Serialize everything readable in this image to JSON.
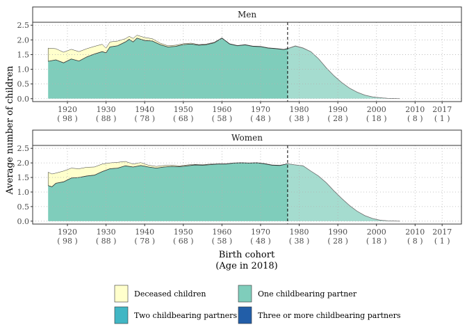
{
  "chart_data": {
    "type": "area",
    "stacked": true,
    "ylabel": "Average number of children",
    "xlabel_line1": "Birth cohort",
    "xlabel_line2": "(Age in 2018)",
    "xlim": [
      1911,
      2022
    ],
    "ylim": [
      -0.1,
      2.6
    ],
    "yticks": [
      0.0,
      0.5,
      1.0,
      1.5,
      2.0,
      2.5
    ],
    "ytick_labels": [
      "0.0",
      "0.5",
      "1.0",
      "1.5",
      "2.0",
      "2.5"
    ],
    "xticks": [
      {
        "year": 1920,
        "label": "1920",
        "age": "( 98 )"
      },
      {
        "year": 1930,
        "label": "1930",
        "age": "( 88 )"
      },
      {
        "year": 1940,
        "label": "1940",
        "age": "( 78 )"
      },
      {
        "year": 1950,
        "label": "1950",
        "age": "( 68 )"
      },
      {
        "year": 1960,
        "label": "1960",
        "age": "( 58 )"
      },
      {
        "year": 1970,
        "label": "1970",
        "age": "( 48 )"
      },
      {
        "year": 1980,
        "label": "1980",
        "age": "( 38 )"
      },
      {
        "year": 1990,
        "label": "1990",
        "age": "( 28 )"
      },
      {
        "year": 2000,
        "label": "2000",
        "age": "( 18 )"
      },
      {
        "year": 2010,
        "label": "2010",
        "age": "( 8 )"
      },
      {
        "year": 2017,
        "label": "2017",
        "age": "( 1 )"
      }
    ],
    "cutoff_year": 1977,
    "grid": true,
    "colors": {
      "deceased": "#ffffcc",
      "one": "#7fcdbb",
      "two": "#41b6c4",
      "three": "#225ea8",
      "grid": "#b3b3b3",
      "fade": "#ffffff"
    },
    "legend": {
      "placement": "bottom",
      "items": [
        {
          "key": "deceased",
          "label": "Deceased children"
        },
        {
          "key": "one",
          "label": "One childbearing partner"
        },
        {
          "key": "two",
          "label": "Two childbearing partners"
        },
        {
          "key": "three",
          "label": "Three or more childbearing partners"
        }
      ]
    },
    "panels": [
      {
        "title": "Men",
        "points": [
          [
            1915,
            1.27,
            1.72
          ],
          [
            1917,
            1.32,
            1.7
          ],
          [
            1919,
            1.22,
            1.58
          ],
          [
            1921,
            1.35,
            1.68
          ],
          [
            1923,
            1.28,
            1.6
          ],
          [
            1925,
            1.42,
            1.7
          ],
          [
            1927,
            1.52,
            1.78
          ],
          [
            1929,
            1.6,
            1.85
          ],
          [
            1930,
            1.56,
            1.72
          ],
          [
            1931,
            1.76,
            1.93
          ],
          [
            1933,
            1.8,
            1.96
          ],
          [
            1935,
            1.93,
            2.04
          ],
          [
            1936,
            2.02,
            2.12
          ],
          [
            1937,
            1.93,
            2.05
          ],
          [
            1938,
            2.06,
            2.16
          ],
          [
            1940,
            1.98,
            2.08
          ],
          [
            1942,
            1.96,
            2.04
          ],
          [
            1944,
            1.84,
            1.89
          ],
          [
            1946,
            1.76,
            1.8
          ],
          [
            1948,
            1.78,
            1.82
          ],
          [
            1950,
            1.84,
            1.87
          ],
          [
            1952,
            1.86,
            1.89
          ],
          [
            1954,
            1.82,
            1.84
          ],
          [
            1956,
            1.84,
            1.86
          ],
          [
            1958,
            1.9,
            1.92
          ],
          [
            1960,
            2.06,
            2.07
          ],
          [
            1962,
            1.86,
            1.87
          ],
          [
            1964,
            1.8,
            1.81
          ],
          [
            1966,
            1.83,
            1.84
          ],
          [
            1968,
            1.78,
            1.79
          ],
          [
            1970,
            1.77,
            1.78
          ],
          [
            1972,
            1.72,
            1.73
          ],
          [
            1974,
            1.7,
            1.71
          ],
          [
            1976,
            1.67,
            1.68
          ],
          [
            1977,
            1.7,
            1.71
          ],
          [
            1979,
            1.79,
            1.8
          ],
          [
            1981,
            1.72,
            1.73
          ],
          [
            1983,
            1.6,
            1.6
          ],
          [
            1985,
            1.36,
            1.36
          ],
          [
            1987,
            1.05,
            1.05
          ],
          [
            1989,
            0.78,
            0.78
          ],
          [
            1991,
            0.55,
            0.55
          ],
          [
            1993,
            0.36,
            0.36
          ],
          [
            1995,
            0.22,
            0.22
          ],
          [
            1997,
            0.12,
            0.12
          ],
          [
            1999,
            0.06,
            0.06
          ],
          [
            2001,
            0.03,
            0.03
          ],
          [
            2003,
            0.01,
            0.01
          ],
          [
            2006,
            0.0,
            0.0
          ]
        ]
      },
      {
        "title": "Women",
        "points": [
          [
            1915,
            1.22,
            1.68
          ],
          [
            1916,
            1.18,
            1.62
          ],
          [
            1917,
            1.3,
            1.65
          ],
          [
            1919,
            1.35,
            1.72
          ],
          [
            1921,
            1.48,
            1.82
          ],
          [
            1923,
            1.5,
            1.8
          ],
          [
            1925,
            1.55,
            1.85
          ],
          [
            1927,
            1.58,
            1.86
          ],
          [
            1929,
            1.7,
            1.96
          ],
          [
            1931,
            1.8,
            2.0
          ],
          [
            1933,
            1.82,
            2.02
          ],
          [
            1935,
            1.9,
            2.05
          ],
          [
            1937,
            1.86,
            1.96
          ],
          [
            1939,
            1.91,
            2.01
          ],
          [
            1941,
            1.86,
            1.92
          ],
          [
            1943,
            1.82,
            1.88
          ],
          [
            1945,
            1.86,
            1.91
          ],
          [
            1947,
            1.88,
            1.92
          ],
          [
            1949,
            1.87,
            1.9
          ],
          [
            1951,
            1.9,
            1.93
          ],
          [
            1953,
            1.93,
            1.95
          ],
          [
            1955,
            1.92,
            1.94
          ],
          [
            1957,
            1.94,
            1.96
          ],
          [
            1959,
            1.96,
            1.97
          ],
          [
            1961,
            1.96,
            1.97
          ],
          [
            1963,
            1.99,
            2.0
          ],
          [
            1965,
            2.0,
            2.01
          ],
          [
            1967,
            1.99,
            2.0
          ],
          [
            1969,
            2.0,
            2.01
          ],
          [
            1971,
            1.97,
            1.98
          ],
          [
            1973,
            1.92,
            1.93
          ],
          [
            1975,
            1.91,
            1.92
          ],
          [
            1977,
            1.97,
            1.97
          ],
          [
            1979,
            1.93,
            1.93
          ],
          [
            1981,
            1.9,
            1.9
          ],
          [
            1983,
            1.72,
            1.72
          ],
          [
            1985,
            1.55,
            1.55
          ],
          [
            1987,
            1.32,
            1.32
          ],
          [
            1989,
            1.04,
            1.04
          ],
          [
            1991,
            0.78,
            0.78
          ],
          [
            1993,
            0.54,
            0.54
          ],
          [
            1995,
            0.34,
            0.34
          ],
          [
            1997,
            0.19,
            0.19
          ],
          [
            1999,
            0.09,
            0.09
          ],
          [
            2001,
            0.03,
            0.03
          ],
          [
            2003,
            0.01,
            0.01
          ],
          [
            2006,
            0.0,
            0.0
          ]
        ]
      }
    ]
  }
}
